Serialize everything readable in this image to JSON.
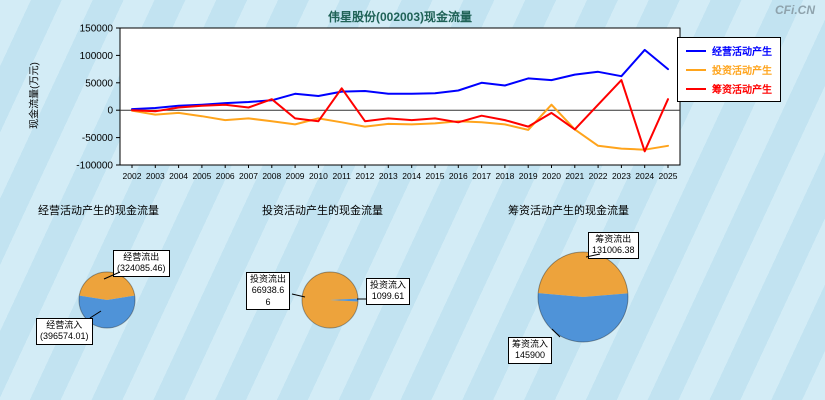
{
  "logo": {
    "text": "CFi.CN"
  },
  "chart_data": [
    {
      "type": "line",
      "title": "伟星股份(002003)现金流量",
      "xlabel": "",
      "ylabel": "现金流量(万元)",
      "ylim": [
        -100000,
        150000
      ],
      "yticks": [
        150000,
        100000,
        50000,
        0,
        -50000,
        -100000
      ],
      "grid": false,
      "legend_position": "top-right",
      "x": [
        2002,
        2003,
        2004,
        2005,
        2006,
        2007,
        2008,
        2009,
        2010,
        2011,
        2012,
        2013,
        2014,
        2015,
        2016,
        2017,
        2018,
        2019,
        2020,
        2021,
        2022,
        2023,
        2024,
        2025
      ],
      "series": [
        {
          "name": "经营活动产生",
          "color": "#0000ff",
          "values": [
            2000,
            4000,
            8000,
            10000,
            13000,
            15000,
            18000,
            30000,
            26000,
            34000,
            35000,
            30000,
            30000,
            31000,
            36000,
            50000,
            45000,
            58000,
            55000,
            65000,
            70000,
            62000,
            110000,
            75000
          ]
        },
        {
          "name": "投资活动产生",
          "color": "#ffa41c",
          "values": [
            -1000,
            -8000,
            -5000,
            -11000,
            -18000,
            -15000,
            -20000,
            -26000,
            -15000,
            -22000,
            -30000,
            -25000,
            -26000,
            -24000,
            -20000,
            -22000,
            -26000,
            -36000,
            10000,
            -35000,
            -65000,
            -70000,
            -72000,
            -65000
          ]
        },
        {
          "name": "筹资活动产生",
          "color": "#ff0000",
          "values": [
            0,
            -2000,
            5000,
            8000,
            10000,
            5000,
            20000,
            -15000,
            -20000,
            40000,
            -20000,
            -15000,
            -18000,
            -15000,
            -22000,
            -10000,
            -18000,
            -30000,
            -5000,
            -35000,
            10000,
            55000,
            -75000,
            20000
          ]
        }
      ]
    },
    {
      "type": "pie",
      "title": "经营活动产生的现金流量",
      "rotation": -81,
      "slices": [
        {
          "label": "经营流出",
          "value": 324085.46,
          "color": "#eda33c",
          "label_text": "经营流出\n(324085.46)"
        },
        {
          "label": "经营流入",
          "value": 396574.01,
          "color": "#4f93d8",
          "label_text": "经营流入\n(396574.01)"
        }
      ]
    },
    {
      "type": "pie",
      "title": "投资活动产生的现金流量",
      "rotation": 93,
      "slices": [
        {
          "label": "投资流出",
          "value": 66938.66,
          "color": "#eda33c",
          "label_text": "投资流出\n66938.66"
        },
        {
          "label": "投资流入",
          "value": 1099.61,
          "color": "#4f93d8",
          "label_text": "投资流入\n1099.61"
        }
      ]
    },
    {
      "type": "pie",
      "title": "筹资活动产生的现金流量",
      "rotation": -85,
      "slices": [
        {
          "label": "筹资流出",
          "value": 131006.38,
          "color": "#eda33c",
          "label_text": "筹资流出\n131006.38"
        },
        {
          "label": "筹资流入",
          "value": 145900,
          "color": "#4f93d8",
          "label_text": "筹资流入\n145900"
        }
      ]
    }
  ]
}
